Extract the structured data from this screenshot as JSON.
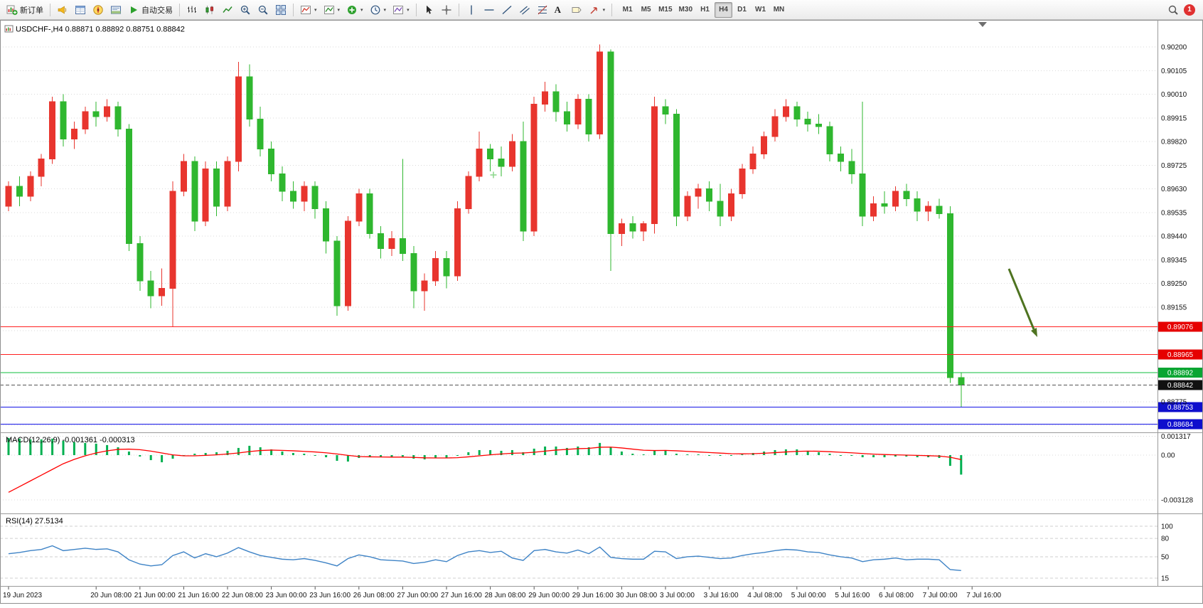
{
  "toolbar": {
    "new_order": "新订单",
    "auto_trading": "自动交易",
    "text_tool": "A",
    "timeframes": [
      "M1",
      "M5",
      "M15",
      "M30",
      "H1",
      "H4",
      "D1",
      "W1",
      "MN"
    ],
    "active_timeframe": "H4",
    "notification_count": "1"
  },
  "chart": {
    "title": "USDCHF-,H4  0.88871 0.88892 0.88751 0.88842",
    "symbol": "USDCHF-",
    "timeframe": "H4",
    "open": "0.88871",
    "high": "0.88892",
    "low": "0.88751",
    "close": "0.88842"
  },
  "price_axis": {
    "max": 0.902,
    "min": 0.8868,
    "grid_prices": [
      0.902,
      0.90105,
      0.9001,
      0.89915,
      0.8982,
      0.89725,
      0.8963,
      0.89535,
      0.8944,
      0.89345,
      0.8925,
      0.89155,
      0.8906,
      0.88965,
      0.8887,
      0.88775,
      0.8868
    ],
    "visible_labels": [
      "0.90200",
      "0.90105",
      "0.90010",
      "0.89915",
      "0.89820",
      "0.89725",
      "0.89630",
      "0.89535",
      "0.89440",
      "0.89345",
      "0.89250",
      "0.89155",
      "0.88775"
    ]
  },
  "levels": [
    {
      "label": "0.89076",
      "price": 0.89076,
      "color": "#ff1f1f",
      "badge": "#e60000",
      "style": "solid"
    },
    {
      "label": "0.88965",
      "price": 0.88965,
      "color": "#ff1f1f",
      "badge": "#e60000",
      "style": "solid"
    },
    {
      "label": "0.88892",
      "price": 0.88892,
      "color": "#0fbf3c",
      "badge": "#0aa532",
      "style": "solid"
    },
    {
      "label": "0.88842",
      "price": 0.88842,
      "color": "#555555",
      "badge": "#111111",
      "style": "dash"
    },
    {
      "label": "0.88753",
      "price": 0.88753,
      "color": "#1414e6",
      "badge": "#0f0fcd",
      "style": "solid"
    },
    {
      "label": "0.88684",
      "price": 0.88684,
      "color": "#1414e6",
      "badge": "#0f0fcd",
      "style": "solid"
    }
  ],
  "chart_data": {
    "type": "candlestick",
    "symbol": "USDCHF-",
    "timeframe": "H4",
    "up_color": "#e8352e",
    "down_color": "#2fb72f",
    "candles": [
      [
        0.8956,
        0.8966,
        0.8954,
        0.8964
      ],
      [
        0.8964,
        0.8968,
        0.8956,
        0.896
      ],
      [
        0.896,
        0.897,
        0.8958,
        0.8968
      ],
      [
        0.8968,
        0.8977,
        0.8964,
        0.8975
      ],
      [
        0.8975,
        0.9,
        0.8973,
        0.8998
      ],
      [
        0.8998,
        0.9001,
        0.898,
        0.8983
      ],
      [
        0.8983,
        0.899,
        0.8979,
        0.8987
      ],
      [
        0.8987,
        0.8996,
        0.8985,
        0.8994
      ],
      [
        0.8994,
        0.8998,
        0.8988,
        0.8992
      ],
      [
        0.8992,
        0.8999,
        0.899,
        0.8996
      ],
      [
        0.8996,
        0.8998,
        0.8984,
        0.8987
      ],
      [
        0.8987,
        0.8989,
        0.8938,
        0.8941
      ],
      [
        0.8941,
        0.8944,
        0.8922,
        0.8926
      ],
      [
        0.8926,
        0.893,
        0.8915,
        0.892
      ],
      [
        0.892,
        0.8931,
        0.8916,
        0.8923
      ],
      [
        0.8923,
        0.8966,
        0.89076,
        0.8962
      ],
      [
        0.8962,
        0.8977,
        0.896,
        0.8974
      ],
      [
        0.8974,
        0.8976,
        0.8946,
        0.895
      ],
      [
        0.895,
        0.8974,
        0.8948,
        0.8971
      ],
      [
        0.8971,
        0.8974,
        0.8952,
        0.8956
      ],
      [
        0.8956,
        0.8976,
        0.8954,
        0.8974
      ],
      [
        0.8974,
        0.9014,
        0.897,
        0.9008
      ],
      [
        0.9008,
        0.9013,
        0.8988,
        0.8991
      ],
      [
        0.8991,
        0.8996,
        0.8976,
        0.8979
      ],
      [
        0.8979,
        0.8982,
        0.8966,
        0.8969
      ],
      [
        0.8969,
        0.8972,
        0.8958,
        0.8962
      ],
      [
        0.8962,
        0.8966,
        0.8955,
        0.8958
      ],
      [
        0.8958,
        0.8966,
        0.8954,
        0.8964
      ],
      [
        0.8964,
        0.8966,
        0.8951,
        0.8955
      ],
      [
        0.8955,
        0.8958,
        0.8937,
        0.8942
      ],
      [
        0.8942,
        0.8944,
        0.8912,
        0.8916
      ],
      [
        0.8916,
        0.8952,
        0.8914,
        0.895
      ],
      [
        0.895,
        0.8963,
        0.8948,
        0.8961
      ],
      [
        0.8961,
        0.8963,
        0.8943,
        0.8945
      ],
      [
        0.8945,
        0.8948,
        0.8935,
        0.8939
      ],
      [
        0.8939,
        0.8946,
        0.8936,
        0.8943
      ],
      [
        0.8943,
        0.8975,
        0.8934,
        0.8937
      ],
      [
        0.8937,
        0.894,
        0.8915,
        0.8922
      ],
      [
        0.8922,
        0.8929,
        0.8914,
        0.8926
      ],
      [
        0.8926,
        0.8938,
        0.8924,
        0.8935
      ],
      [
        0.8935,
        0.8938,
        0.8923,
        0.8928
      ],
      [
        0.8928,
        0.8958,
        0.8926,
        0.8955
      ],
      [
        0.8955,
        0.897,
        0.8953,
        0.8968
      ],
      [
        0.8968,
        0.8986,
        0.8966,
        0.8979
      ],
      [
        0.8979,
        0.8981,
        0.897,
        0.8975
      ],
      [
        0.8975,
        0.898,
        0.8968,
        0.8972
      ],
      [
        0.8972,
        0.8985,
        0.897,
        0.8982
      ],
      [
        0.8982,
        0.899,
        0.8942,
        0.8946
      ],
      [
        0.8946,
        0.9,
        0.8944,
        0.8997
      ],
      [
        0.8997,
        0.9006,
        0.8994,
        0.9002
      ],
      [
        0.9002,
        0.9005,
        0.899,
        0.8994
      ],
      [
        0.8994,
        0.8998,
        0.8986,
        0.8989
      ],
      [
        0.8989,
        0.9001,
        0.8987,
        0.8999
      ],
      [
        0.8999,
        0.9001,
        0.8982,
        0.8985
      ],
      [
        0.8985,
        0.9021,
        0.8983,
        0.9018
      ],
      [
        0.9018,
        0.9019,
        0.893,
        0.8945
      ],
      [
        0.8945,
        0.8951,
        0.894,
        0.8949
      ],
      [
        0.8949,
        0.8952,
        0.8943,
        0.8946
      ],
      [
        0.8946,
        0.895,
        0.8942,
        0.8949
      ],
      [
        0.8949,
        0.9,
        0.8945,
        0.8996
      ],
      [
        0.8996,
        0.8999,
        0.8989,
        0.8993
      ],
      [
        0.8993,
        0.8995,
        0.8948,
        0.8952
      ],
      [
        0.8952,
        0.8962,
        0.895,
        0.896
      ],
      [
        0.896,
        0.8965,
        0.8955,
        0.8963
      ],
      [
        0.8963,
        0.8966,
        0.8954,
        0.8958
      ],
      [
        0.8958,
        0.8965,
        0.8948,
        0.8952
      ],
      [
        0.8952,
        0.8963,
        0.895,
        0.8961
      ],
      [
        0.8961,
        0.8973,
        0.8959,
        0.8971
      ],
      [
        0.8971,
        0.898,
        0.8969,
        0.8977
      ],
      [
        0.8977,
        0.8986,
        0.8975,
        0.8984
      ],
      [
        0.8984,
        0.8995,
        0.8982,
        0.8992
      ],
      [
        0.8992,
        0.8999,
        0.899,
        0.8996
      ],
      [
        0.8996,
        0.8998,
        0.8988,
        0.8991
      ],
      [
        0.8991,
        0.8994,
        0.8986,
        0.8989
      ],
      [
        0.8989,
        0.8993,
        0.8985,
        0.8988
      ],
      [
        0.8988,
        0.899,
        0.8974,
        0.8977
      ],
      [
        0.8977,
        0.898,
        0.897,
        0.8974
      ],
      [
        0.8974,
        0.8979,
        0.8965,
        0.8969
      ],
      [
        0.8969,
        0.8998,
        0.8948,
        0.8952
      ],
      [
        0.8952,
        0.896,
        0.895,
        0.8957
      ],
      [
        0.8957,
        0.8962,
        0.8953,
        0.8956
      ],
      [
        0.8956,
        0.8964,
        0.8954,
        0.8962
      ],
      [
        0.8962,
        0.8965,
        0.8956,
        0.8959
      ],
      [
        0.8959,
        0.8962,
        0.895,
        0.8954
      ],
      [
        0.8954,
        0.8958,
        0.895,
        0.8956
      ],
      [
        0.8956,
        0.8959,
        0.8951,
        0.8953
      ],
      [
        0.8953,
        0.8956,
        0.8885,
        0.88871
      ],
      [
        0.88871,
        0.88892,
        0.88751,
        0.88842
      ]
    ],
    "time_labels": [
      "19 Jun 2023",
      "20 Jun 08:00",
      "21 Jun 00:00",
      "21 Jun 16:00",
      "22 Jun 08:00",
      "23 Jun 00:00",
      "23 Jun 16:00",
      "26 Jun 08:00",
      "27 Jun 00:00",
      "27 Jun 16:00",
      "28 Jun 08:00",
      "29 Jun 00:00",
      "29 Jun 16:00",
      "30 Jun 08:00",
      "3 Jul 00:00",
      "3 Jul 16:00",
      "4 Jul 08:00",
      "5 Jul 00:00",
      "5 Jul 16:00",
      "6 Jul 08:00",
      "7 Jul 00:00",
      "7 Jul 16:00"
    ],
    "label_candle_indices": [
      0,
      8,
      12,
      16,
      20,
      24,
      28,
      32,
      36,
      40,
      44,
      48,
      52,
      56,
      60,
      64,
      68,
      72,
      76,
      80,
      84,
      88
    ]
  },
  "macd": {
    "label": "MACD(12,26,9) -0.001361 -0.000313",
    "main_value": -0.001361,
    "signal_value": -0.000313,
    "histogram_color": "#00b050",
    "signal_color": "#ff0000",
    "scale": [
      "0.001317",
      "0.00",
      "-0.003128"
    ],
    "histogram": [
      0.0012,
      0.00115,
      0.0011,
      0.0011,
      0.00115,
      0.001,
      0.0009,
      0.00085,
      0.0008,
      0.0007,
      0.00055,
      0.00025,
      -0.0001,
      -0.00035,
      -0.0005,
      -0.00025,
      0,
      0.0001,
      0.00015,
      0.0002,
      0.0003,
      0.0005,
      0.00065,
      0.00055,
      0.0004,
      0.00025,
      0.00015,
      0.0001,
      0,
      -0.00015,
      -0.0004,
      -0.00045,
      -0.0002,
      -0.0001,
      -0.00015,
      -0.00015,
      -0.0001,
      -0.00025,
      -0.0003,
      -0.0002,
      -0.0002,
      0,
      0.0002,
      0.00035,
      0.00035,
      0.0003,
      0.00035,
      0.0002,
      0.00045,
      0.0006,
      0.0006,
      0.0005,
      0.0006,
      0.00055,
      0.00085,
      0.00055,
      0.00025,
      0.0001,
      5e-05,
      0.0003,
      0.00035,
      0.0001,
      5e-05,
      5e-05,
      0,
      -5e-05,
      -5e-05,
      5e-05,
      0.00015,
      0.00025,
      0.00035,
      0.0004,
      0.0004,
      0.0003,
      0.0002,
      0.0001,
      0,
      -5e-05,
      -0.00015,
      -0.00015,
      -0.00015,
      -0.0001,
      -0.0001,
      -0.00015,
      -0.00015,
      -0.0002,
      -0.00075,
      -0.001361
    ],
    "signal": [
      -0.0026,
      -0.0022,
      -0.0018,
      -0.0014,
      -0.001,
      -0.0006,
      -0.0003,
      -5e-05,
      0.00015,
      0.0003,
      0.0004,
      0.00042,
      0.00038,
      0.00028,
      0.00015,
      2e-05,
      -5e-05,
      -5e-05,
      -2e-05,
      2e-05,
      8e-05,
      0.00015,
      0.00025,
      0.00032,
      0.00035,
      0.00033,
      0.0003,
      0.00026,
      0.00022,
      0.00016,
      8e-05,
      -2e-05,
      -0.0001,
      -0.00012,
      -0.00013,
      -0.00014,
      -0.00014,
      -0.00016,
      -0.00019,
      -0.0002,
      -0.0002,
      -0.00018,
      -0.00012,
      -5e-05,
      2e-05,
      8e-05,
      0.00013,
      0.00015,
      0.0002,
      0.00028,
      0.00035,
      0.0004,
      0.00045,
      0.00047,
      0.00055,
      0.00056,
      0.0005,
      0.00042,
      0.00034,
      0.00032,
      0.00033,
      0.0003,
      0.00026,
      0.00022,
      0.00018,
      0.00014,
      0.0001,
      9e-05,
      0.0001,
      0.00013,
      0.00017,
      0.00022,
      0.00026,
      0.00028,
      0.00027,
      0.00024,
      0.0002,
      0.00016,
      0.00011,
      7e-05,
      4e-05,
      2e-05,
      0,
      -2e-05,
      -4e-05,
      -7e-05,
      -0.00015,
      -0.000313
    ]
  },
  "rsi": {
    "label": "RSI(14) 27.5134",
    "value": 27.5134,
    "color": "#3e83c6",
    "scale": [
      "100",
      "80",
      "50",
      "15"
    ],
    "values": [
      55,
      57,
      60,
      62,
      68,
      60,
      62,
      64,
      62,
      63,
      58,
      45,
      38,
      35,
      37,
      52,
      58,
      48,
      55,
      50,
      56,
      65,
      58,
      52,
      49,
      46,
      45,
      47,
      44,
      40,
      35,
      47,
      53,
      50,
      45,
      44,
      43,
      39,
      41,
      45,
      42,
      52,
      58,
      60,
      57,
      59,
      48,
      44,
      60,
      62,
      58,
      56,
      61,
      55,
      66,
      49,
      47,
      46,
      46,
      59,
      58,
      47,
      50,
      51,
      49,
      47,
      48,
      52,
      55,
      57,
      60,
      62,
      61,
      58,
      57,
      53,
      50,
      48,
      42,
      45,
      46,
      48,
      45,
      46,
      46,
      45,
      29,
      27.5
    ]
  },
  "annotations": {
    "trend_arrow_color": "#4e7320",
    "cross_color": "#8fd98f",
    "shift_marker_color": "#6e6e6e"
  }
}
